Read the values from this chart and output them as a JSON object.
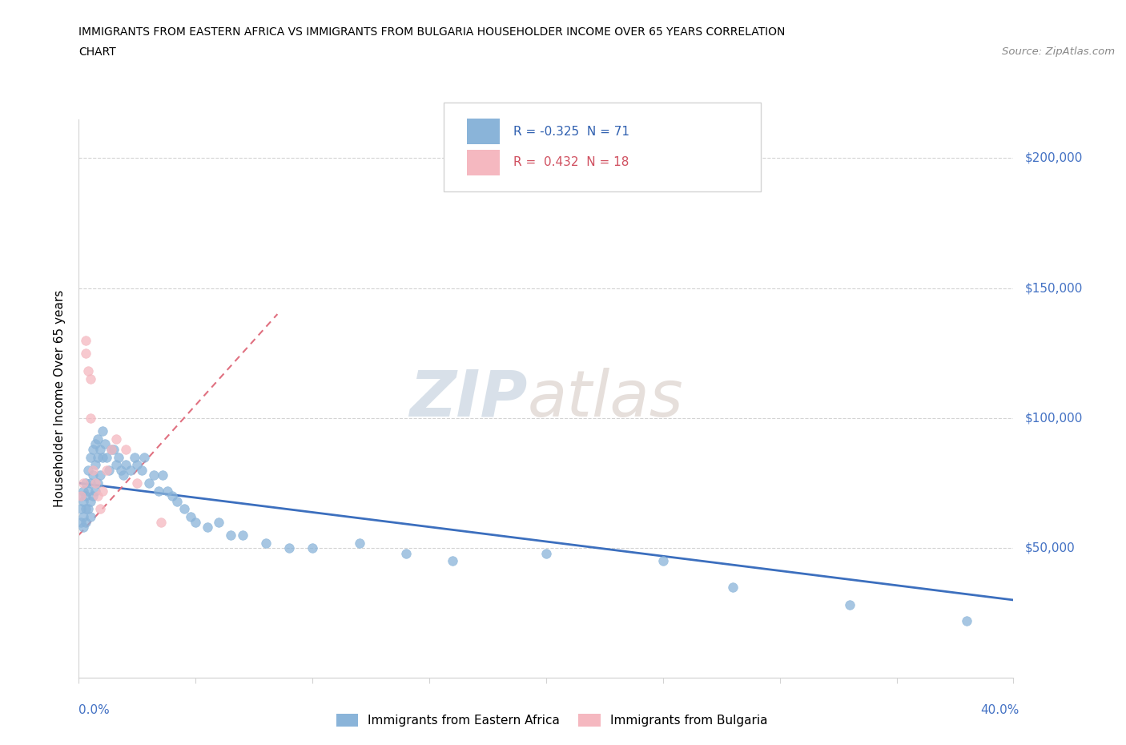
{
  "title_line1": "IMMIGRANTS FROM EASTERN AFRICA VS IMMIGRANTS FROM BULGARIA HOUSEHOLDER INCOME OVER 65 YEARS CORRELATION",
  "title_line2": "CHART",
  "source_text": "Source: ZipAtlas.com",
  "ylabel": "Householder Income Over 65 years",
  "xlim": [
    0.0,
    0.4
  ],
  "ylim": [
    0,
    215000
  ],
  "watermark_zip": "ZIP",
  "watermark_atlas": "atlas",
  "legend_r1_label": "R = -0.325  N = 71",
  "legend_r2_label": "R =  0.432  N = 18",
  "legend_label1": "Immigrants from Eastern Africa",
  "legend_label2": "Immigrants from Bulgaria",
  "color_blue": "#8ab4d9",
  "color_pink": "#f5b8c0",
  "trendline_blue_color": "#3c6fbe",
  "trendline_pink_color": "#e07080",
  "yticks": [
    0,
    50000,
    100000,
    150000,
    200000
  ],
  "ytick_labels": [
    "",
    "$50,000",
    "$100,000",
    "$150,000",
    "$200,000"
  ],
  "xtick_positions": [
    0.0,
    0.05,
    0.1,
    0.15,
    0.2,
    0.25,
    0.3,
    0.35,
    0.4
  ],
  "eastern_africa_x": [
    0.001,
    0.001,
    0.001,
    0.002,
    0.002,
    0.002,
    0.002,
    0.003,
    0.003,
    0.003,
    0.003,
    0.004,
    0.004,
    0.004,
    0.005,
    0.005,
    0.005,
    0.005,
    0.006,
    0.006,
    0.006,
    0.007,
    0.007,
    0.007,
    0.008,
    0.008,
    0.008,
    0.009,
    0.009,
    0.01,
    0.01,
    0.011,
    0.012,
    0.013,
    0.014,
    0.015,
    0.016,
    0.017,
    0.018,
    0.019,
    0.02,
    0.022,
    0.024,
    0.025,
    0.027,
    0.028,
    0.03,
    0.032,
    0.034,
    0.036,
    0.038,
    0.04,
    0.042,
    0.045,
    0.048,
    0.05,
    0.055,
    0.06,
    0.065,
    0.07,
    0.08,
    0.09,
    0.1,
    0.12,
    0.14,
    0.16,
    0.2,
    0.25,
    0.28,
    0.33,
    0.38
  ],
  "eastern_africa_y": [
    70000,
    65000,
    60000,
    72000,
    68000,
    62000,
    58000,
    75000,
    70000,
    65000,
    60000,
    80000,
    72000,
    65000,
    85000,
    75000,
    68000,
    62000,
    88000,
    78000,
    70000,
    90000,
    82000,
    72000,
    92000,
    85000,
    75000,
    88000,
    78000,
    95000,
    85000,
    90000,
    85000,
    80000,
    88000,
    88000,
    82000,
    85000,
    80000,
    78000,
    82000,
    80000,
    85000,
    82000,
    80000,
    85000,
    75000,
    78000,
    72000,
    78000,
    72000,
    70000,
    68000,
    65000,
    62000,
    60000,
    58000,
    60000,
    55000,
    55000,
    52000,
    50000,
    50000,
    52000,
    48000,
    45000,
    48000,
    45000,
    35000,
    28000,
    22000
  ],
  "bulgaria_x": [
    0.001,
    0.002,
    0.003,
    0.003,
    0.004,
    0.005,
    0.005,
    0.006,
    0.007,
    0.008,
    0.009,
    0.01,
    0.012,
    0.014,
    0.016,
    0.02,
    0.025,
    0.035
  ],
  "bulgaria_y": [
    70000,
    75000,
    130000,
    125000,
    118000,
    115000,
    100000,
    80000,
    75000,
    70000,
    65000,
    72000,
    80000,
    88000,
    92000,
    88000,
    75000,
    60000
  ],
  "blue_trend_x": [
    0.0,
    0.4
  ],
  "blue_trend_y": [
    75000,
    30000
  ],
  "pink_trend_x": [
    0.0,
    0.085
  ],
  "pink_trend_y": [
    55000,
    140000
  ]
}
